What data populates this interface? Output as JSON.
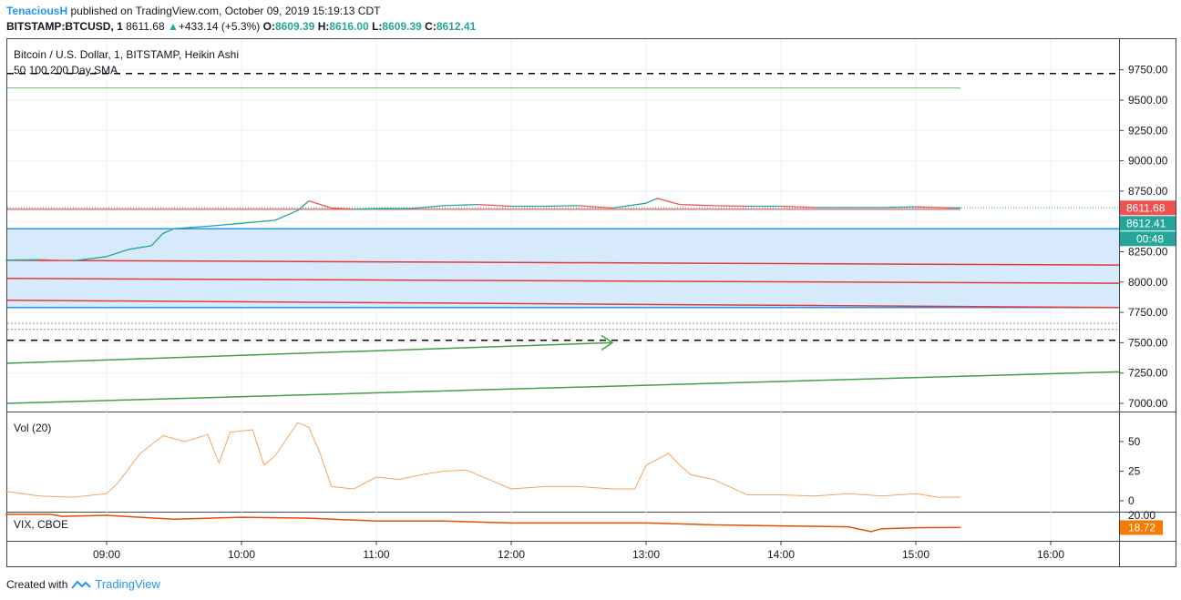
{
  "header": {
    "author": "TenaciousH",
    "published_text": "published on TradingView.com, October 09, 2019 15:19:13 CDT",
    "symbol_line": "BITSTAMP:BTCUSD, 1",
    "last": "8611.68",
    "change": "+433.14 (+5.3%)",
    "o_label": "O:",
    "o": "8609.39",
    "h_label": "H:",
    "h": "8616.00",
    "l_label": "L:",
    "l": "8609.39",
    "c_label": "C:",
    "c": "8612.41"
  },
  "main_pane": {
    "title": "Bitcoin / U.S. Dollar, 1, BITSTAMP, Heikin Ashi",
    "indicator": "50 100 200 Day SMA",
    "price_labels": {
      "last": "8611.68",
      "close": "8612.41",
      "countdown": "00:48"
    }
  },
  "vol_pane": {
    "title": "Vol (20)"
  },
  "vix_pane": {
    "title": "VIX, CBOE",
    "value": "18.72"
  },
  "footer": {
    "created_with": "Created with",
    "brand": "TradingView"
  },
  "colors": {
    "up": "#26a69a",
    "down": "#ef5350",
    "red_line": "#e53935",
    "blue_zone": "#2196f3",
    "zone_fill": "#d6eafb",
    "green_line": "#43a047",
    "vol_line": "#f4a460",
    "vix_line": "#e65100",
    "label_red": "#ef5350",
    "label_green": "#26a69a",
    "label_orange": "#f57c00"
  },
  "chart_data": [
    {
      "type": "line",
      "title": "Bitcoin / U.S. Dollar, 1, BITSTAMP, Heikin Ashi",
      "y_ticks": [
        "9750.00",
        "9500.00",
        "9250.00",
        "9000.00",
        "8750.00",
        "8500.00",
        "8250.00",
        "8000.00",
        "7750.00",
        "7500.00",
        "7250.00",
        "7000.00"
      ],
      "x_ticks": [
        "09:00",
        "10:00",
        "11:00",
        "12:00",
        "13:00",
        "14:00",
        "15:00",
        "16:00"
      ],
      "series": [
        {
          "x": [
            "08:15",
            "08:30",
            "08:45",
            "09:00",
            "09:10",
            "09:20",
            "09:25",
            "09:30",
            "09:45",
            "10:00",
            "10:15",
            "10:25",
            "10:30",
            "10:40",
            "10:50",
            "11:00",
            "11:15",
            "11:30",
            "11:45",
            "12:00",
            "12:15",
            "12:30",
            "12:45",
            "13:00",
            "13:05",
            "13:15",
            "13:30",
            "13:45",
            "14:00",
            "14:15",
            "14:30",
            "14:45",
            "15:00",
            "15:15",
            "15:20"
          ],
          "values": [
            8180,
            8185,
            8175,
            8210,
            8270,
            8300,
            8400,
            8440,
            8460,
            8485,
            8510,
            8590,
            8670,
            8610,
            8600,
            8605,
            8605,
            8630,
            8640,
            8625,
            8625,
            8630,
            8610,
            8650,
            8690,
            8640,
            8630,
            8625,
            8625,
            8615,
            8615,
            8615,
            8620,
            8612,
            8612
          ]
        }
      ],
      "horizontal_levels": {
        "dashed_black": [
          9720,
          7520
        ],
        "green": [
          9600
        ],
        "red": [
          8600
        ],
        "blue_zone": [
          7790,
          8440
        ],
        "dotted_grey": [
          7660,
          7610
        ]
      },
      "sloping_lines": {
        "red": [
          [
            8180,
            8140
          ],
          [
            8030,
            7990
          ],
          [
            7850,
            7790
          ]
        ],
        "green": [
          [
            7330,
            7500
          ],
          [
            7000,
            7260
          ]
        ]
      },
      "ylim": [
        6930,
        9840
      ]
    },
    {
      "type": "line",
      "title": "Vol (20)",
      "y_ticks": [
        "50",
        "25",
        "0"
      ],
      "series": [
        {
          "x": [
            "08:15",
            "08:30",
            "08:45",
            "09:00",
            "09:05",
            "09:15",
            "09:25",
            "09:35",
            "09:45",
            "09:50",
            "09:55",
            "10:05",
            "10:10",
            "10:15",
            "10:20",
            "10:25",
            "10:30",
            "10:35",
            "10:40",
            "10:50",
            "11:00",
            "11:10",
            "11:20",
            "11:30",
            "11:40",
            "11:50",
            "12:00",
            "12:15",
            "12:30",
            "12:45",
            "12:55",
            "13:00",
            "13:10",
            "13:15",
            "13:20",
            "13:30",
            "13:45",
            "14:00",
            "14:15",
            "14:30",
            "14:45",
            "15:00",
            "15:10",
            "15:20"
          ],
          "values": [
            8,
            4,
            3,
            6,
            15,
            40,
            55,
            50,
            56,
            32,
            58,
            60,
            30,
            38,
            52,
            66,
            62,
            40,
            12,
            10,
            20,
            18,
            22,
            25,
            26,
            18,
            10,
            12,
            12,
            10,
            10,
            30,
            40,
            30,
            22,
            18,
            5,
            5,
            4,
            6,
            4,
            6,
            3,
            3
          ]
        }
      ],
      "ylim": [
        -2,
        72
      ]
    },
    {
      "type": "line",
      "title": "VIX, CBOE",
      "y_ticks": [
        "20.00"
      ],
      "series": [
        {
          "x": [
            "08:15",
            "08:35",
            "08:40",
            "09:00",
            "09:30",
            "10:00",
            "10:30",
            "11:00",
            "11:30",
            "12:00",
            "12:30",
            "13:00",
            "13:30",
            "14:00",
            "14:30",
            "14:40",
            "14:45",
            "15:00",
            "15:20"
          ],
          "values": [
            20.1,
            20.1,
            19.9,
            20.0,
            19.6,
            19.8,
            19.7,
            19.4,
            19.4,
            19.2,
            19.2,
            19.2,
            19.0,
            18.9,
            18.8,
            18.3,
            18.6,
            18.7,
            18.72
          ]
        }
      ],
      "ylim": [
        17.8,
        20.6
      ]
    }
  ]
}
